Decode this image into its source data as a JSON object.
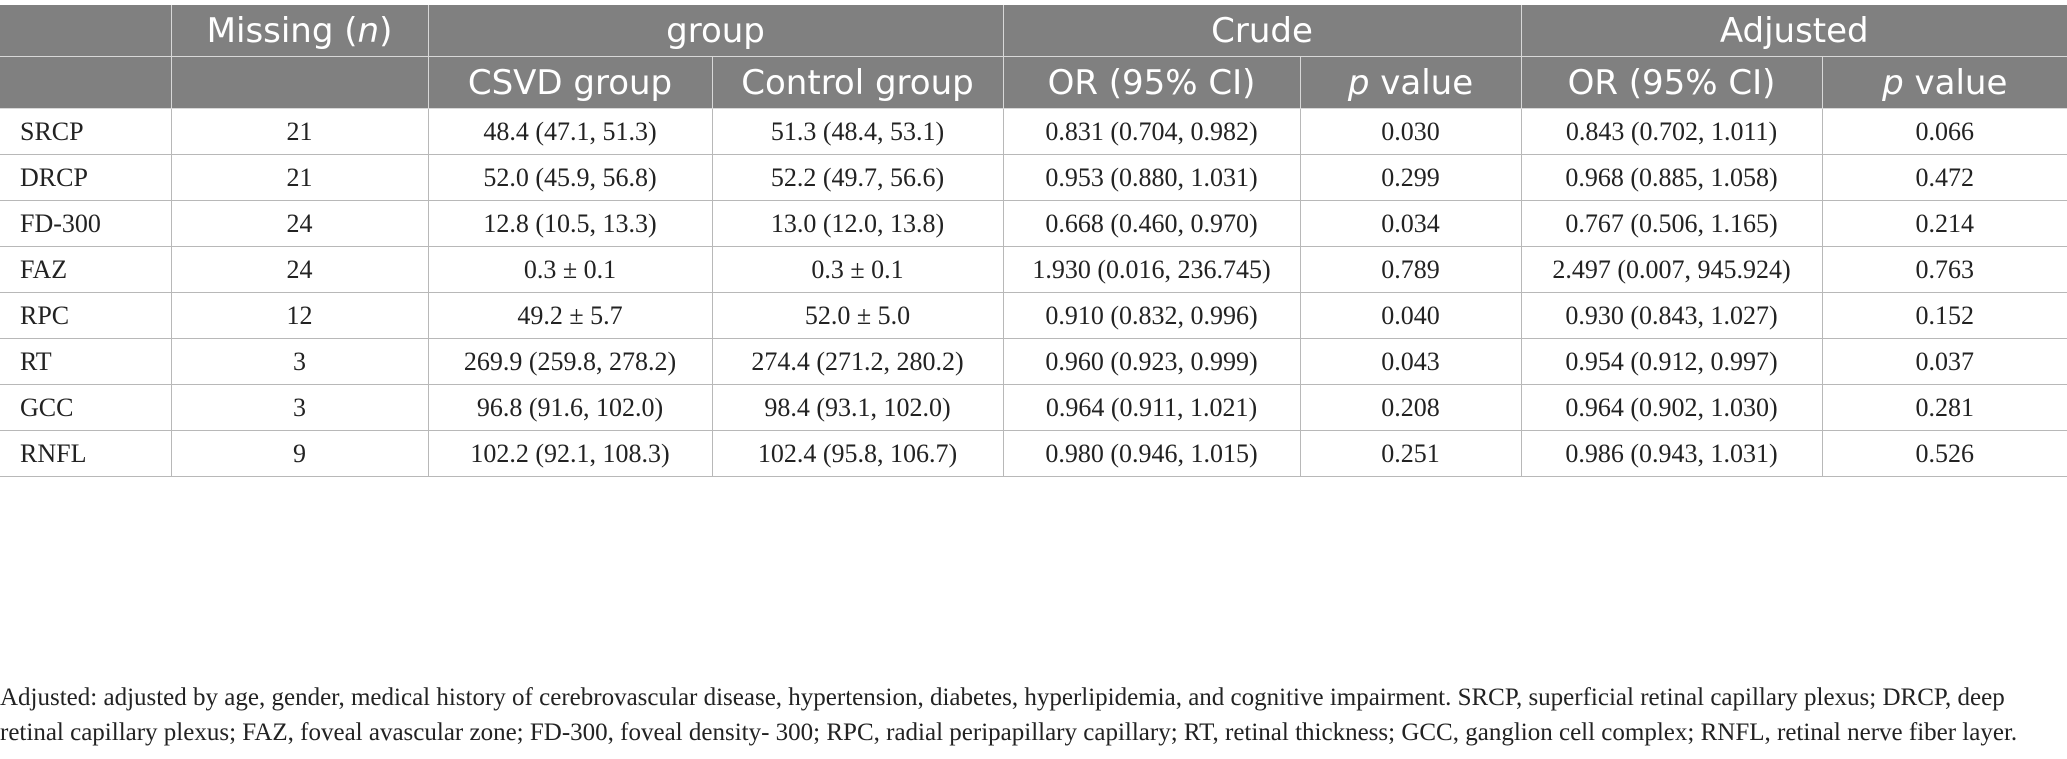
{
  "header": {
    "row1": {
      "blank": "",
      "missing_prefix": "Missing (",
      "missing_var": "n",
      "missing_suffix": ")",
      "group": "group",
      "crude": "Crude",
      "adjusted": "Adjusted"
    },
    "row2": {
      "blank": "",
      "csvd": "CSVD group",
      "control": "Control group",
      "crude_or": "OR (95% CI)",
      "crude_p_var": "p",
      "crude_p_suffix": " value",
      "adj_or": "OR (95% CI)",
      "adj_p_var": "p",
      "adj_p_suffix": " value"
    }
  },
  "rows": [
    [
      "SRCP",
      "21",
      "48.4 (47.1, 51.3)",
      "51.3 (48.4, 53.1)",
      "0.831 (0.704, 0.982)",
      "0.030",
      "0.843 (0.702, 1.011)",
      "0.066"
    ],
    [
      "DRCP",
      "21",
      "52.0 (45.9, 56.8)",
      "52.2 (49.7, 56.6)",
      "0.953 (0.880, 1.031)",
      "0.299",
      "0.968 (0.885, 1.058)",
      "0.472"
    ],
    [
      "FD-300",
      "24",
      "12.8 (10.5, 13.3)",
      "13.0 (12.0, 13.8)",
      "0.668 (0.460, 0.970)",
      "0.034",
      "0.767 (0.506, 1.165)",
      "0.214"
    ],
    [
      "FAZ",
      "24",
      "0.3 ± 0.1",
      "0.3 ± 0.1",
      "1.930 (0.016, 236.745)",
      "0.789",
      "2.497 (0.007, 945.924)",
      "0.763"
    ],
    [
      "RPC",
      "12",
      "49.2 ± 5.7",
      "52.0 ± 5.0",
      "0.910 (0.832, 0.996)",
      "0.040",
      "0.930 (0.843, 1.027)",
      "0.152"
    ],
    [
      "RT",
      "3",
      "269.9 (259.8, 278.2)",
      "274.4 (271.2, 280.2)",
      "0.960 (0.923, 0.999)",
      "0.043",
      "0.954 (0.912, 0.997)",
      "0.037"
    ],
    [
      "GCC",
      "3",
      "96.8 (91.6, 102.0)",
      "98.4 (93.1, 102.0)",
      "0.964 (0.911, 1.021)",
      "0.208",
      "0.964 (0.902, 1.030)",
      "0.281"
    ],
    [
      "RNFL",
      "9",
      "102.2 (92.1, 108.3)",
      "102.4 (95.8, 106.7)",
      "0.980 (0.946, 1.015)",
      "0.251",
      "0.986 (0.943, 1.031)",
      "0.526"
    ]
  ],
  "footnote": "Adjusted: adjusted by age, gender, medical history of cerebrovascular disease, hypertension, diabetes, hyperlipidemia, and cognitive impairment. SRCP, superficial retinal capillary plexus; DRCP, deep retinal capillary plexus; FAZ, foveal avascular zone; FD-300, foveal density- 300; RPC, radial peripapillary capillary; RT, retinal thickness; GCC, ganglion cell complex; RNFL, retinal nerve fiber layer.",
  "colors": {
    "header_bg": "#808080",
    "header_text": "#ffffff",
    "body_text": "#222222",
    "grid": "#b8b8b8"
  }
}
